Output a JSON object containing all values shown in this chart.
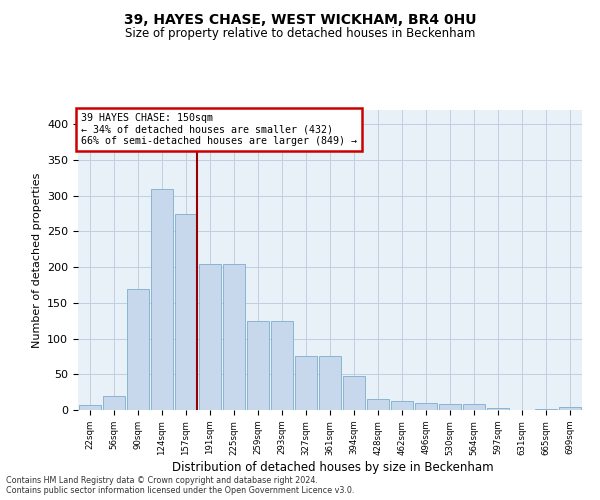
{
  "title": "39, HAYES CHASE, WEST WICKHAM, BR4 0HU",
  "subtitle": "Size of property relative to detached houses in Beckenham",
  "xlabel": "Distribution of detached houses by size in Beckenham",
  "ylabel": "Number of detached properties",
  "bin_labels": [
    "22sqm",
    "56sqm",
    "90sqm",
    "124sqm",
    "157sqm",
    "191sqm",
    "225sqm",
    "259sqm",
    "293sqm",
    "327sqm",
    "361sqm",
    "394sqm",
    "428sqm",
    "462sqm",
    "496sqm",
    "530sqm",
    "564sqm",
    "597sqm",
    "631sqm",
    "665sqm",
    "699sqm"
  ],
  "bar_heights": [
    7,
    20,
    170,
    310,
    275,
    205,
    205,
    125,
    125,
    75,
    75,
    48,
    15,
    12,
    10,
    8,
    8,
    3,
    0,
    2,
    4
  ],
  "bar_color": "#c8d8ec",
  "bar_edge_color": "#8ab4d0",
  "vline_x_idx": 4,
  "vline_color": "#990000",
  "annotation_box_text": "39 HAYES CHASE: 150sqm\n← 34% of detached houses are smaller (432)\n66% of semi-detached houses are larger (849) →",
  "annotation_box_color": "#cc0000",
  "annotation_box_fill": "#ffffff",
  "ylim": [
    0,
    420
  ],
  "yticks": [
    0,
    50,
    100,
    150,
    200,
    250,
    300,
    350,
    400
  ],
  "grid_color": "#c0d0e0",
  "bg_color": "#e8f0f8",
  "footer1": "Contains HM Land Registry data © Crown copyright and database right 2024.",
  "footer2": "Contains public sector information licensed under the Open Government Licence v3.0."
}
